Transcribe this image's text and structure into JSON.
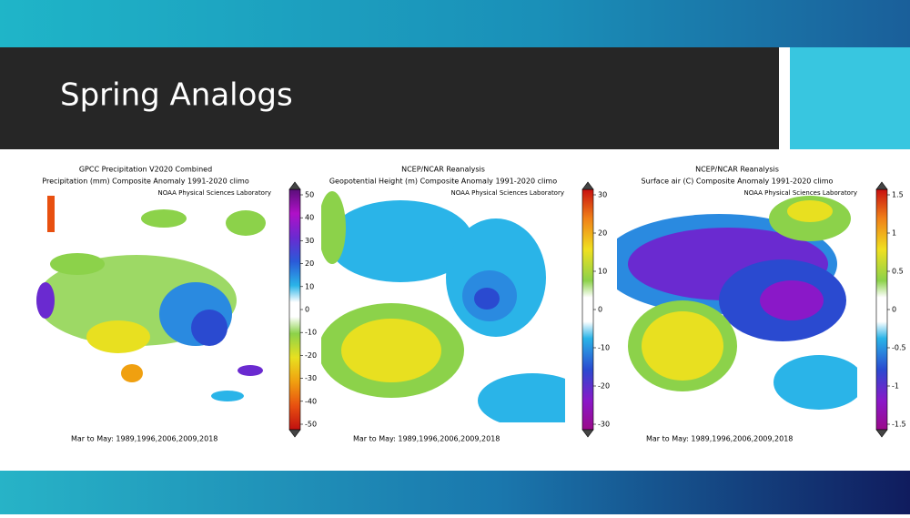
{
  "header": {
    "title": "Spring Analogs"
  },
  "panels": [
    {
      "title_lines": [
        "GPCC Precipitation V2020 Combined",
        "Precipitation (mm) Composite Anomaly 1991-2020 climo"
      ],
      "lab": "NOAA Physical Sciences Laboratory",
      "colorbar_ticks": [
        50,
        40,
        30,
        20,
        10,
        0,
        -10,
        -20,
        -30,
        -40,
        -50
      ],
      "footer": "Mar to May: 1989,1996,2006,2009,2018"
    },
    {
      "title_lines": [
        "NCEP/NCAR Reanalysis",
        "Geopotential Height (m) Composite Anomaly 1991-2020 climo"
      ],
      "lab": "NOAA Physical Sciences Laboratory",
      "colorbar_ticks": [
        30,
        20,
        10,
        0,
        -10,
        -20,
        -30
      ],
      "footer": "Mar to May: 1989,1996,2006,2009,2018"
    },
    {
      "title_lines": [
        "NCEP/NCAR Reanalysis",
        "Surface air (C) Composite Anomaly 1991-2020 climo"
      ],
      "lab": "NOAA Physical Sciences Laboratory",
      "colorbar_ticks": [
        1.5,
        1,
        0.5,
        0,
        -0.5,
        -1,
        -1.5
      ],
      "footer": "Mar to May: 1989,1996,2006,2009,2018"
    }
  ]
}
